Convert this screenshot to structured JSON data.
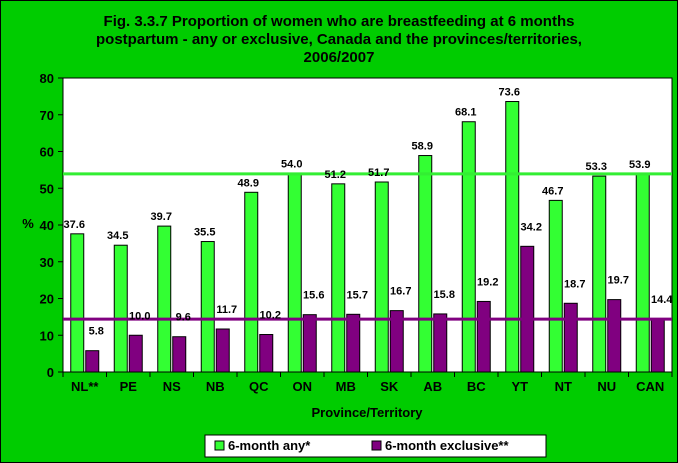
{
  "chart_data": {
    "type": "bar",
    "title_lines": [
      "Fig. 3.3.7 Proportion of women who are breastfeeding at 6 months",
      "postpartum - any or exclusive, Canada and the provinces/territories,",
      "2006/2007"
    ],
    "xlabel": "Province/Territory",
    "ylabel": "%",
    "ylim": [
      0,
      80
    ],
    "yticks": [
      0,
      10,
      20,
      30,
      40,
      50,
      60,
      70,
      80
    ],
    "categories": [
      "NL**",
      "PE",
      "NS",
      "NB",
      "QC",
      "ON",
      "MB",
      "SK",
      "AB",
      "BC",
      "YT",
      "NT",
      "NU",
      "CAN"
    ],
    "series": [
      {
        "name": "6-month any*",
        "color": "#33ff33",
        "values": [
          37.6,
          34.5,
          39.7,
          35.5,
          48.9,
          54.0,
          51.2,
          51.7,
          58.9,
          68.1,
          73.6,
          46.7,
          53.3,
          53.9
        ],
        "labels": [
          "37.6",
          "34.5",
          "39.7",
          "35.5",
          "48.9",
          "54.0",
          "51.2",
          "51.7",
          "58.9",
          "68.1",
          "73.6",
          "46.7",
          "53.3",
          "53.9"
        ]
      },
      {
        "name": "6-month exclusive**",
        "color": "#800080",
        "values": [
          5.8,
          10.0,
          9.6,
          11.7,
          10.2,
          15.6,
          15.7,
          16.7,
          15.8,
          19.2,
          34.2,
          18.7,
          19.7,
          14.4
        ],
        "labels": [
          "5.8",
          "10.0",
          "9.6",
          "11.7",
          "10.2",
          "15.6",
          "15.7",
          "16.7",
          "15.8",
          "19.2",
          "34.2",
          "18.7",
          "19.7",
          "14.4"
        ]
      }
    ],
    "reference_lines": [
      {
        "series": "6-month any*",
        "value": 53.9,
        "color": "#33ee33"
      },
      {
        "series": "6-month exclusive**",
        "value": 14.4,
        "color": "#800080"
      }
    ],
    "grid": false,
    "legend_position": "bottom"
  }
}
